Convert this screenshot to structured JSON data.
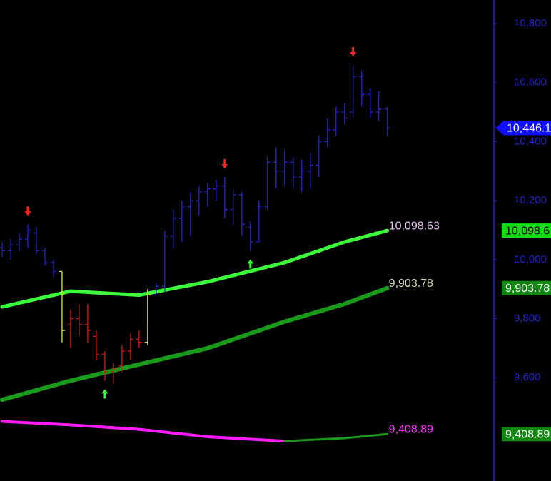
{
  "chart_data": {
    "type": "ohlc",
    "ylim": [
      9250,
      10880
    ],
    "yticks": [
      {
        "value": 10800,
        "label": "10,800"
      },
      {
        "value": 10600,
        "label": "10,600"
      },
      {
        "value": 10400,
        "label": "10,400"
      },
      {
        "value": 10200,
        "label": "10,200"
      },
      {
        "value": 10000,
        "label": "10,000"
      },
      {
        "value": 9800,
        "label": "9,800"
      },
      {
        "value": 9600,
        "label": "9,600"
      }
    ],
    "xlim": [
      -0.25,
      57.2
    ],
    "bars": {
      "open": [
        10040,
        10030,
        10050,
        10070,
        10090,
        10030,
        9990,
        9960,
        9780,
        9800,
        9780,
        9740,
        9680,
        9620,
        9640,
        9690,
        9730,
        9720,
        9880,
        9910,
        10080,
        10140,
        10180,
        10200,
        10230,
        10240,
        10250,
        10170,
        10220,
        10110,
        10060,
        10180,
        10330,
        10300,
        10330,
        10280,
        10300,
        10320,
        10400,
        10440,
        10500,
        10500,
        10620,
        10560,
        10500,
        10510
      ],
      "high": [
        10060,
        10070,
        10090,
        10120,
        10110,
        10040,
        10000,
        9960,
        9830,
        9850,
        9850,
        9760,
        9690,
        9650,
        9710,
        9750,
        9760,
        9900,
        9920,
        10100,
        10170,
        10200,
        10230,
        10250,
        10260,
        10270,
        10280,
        10240,
        10230,
        10130,
        10200,
        10350,
        10380,
        10370,
        10350,
        10340,
        10360,
        10420,
        10480,
        10520,
        10530,
        10660,
        10640,
        10580,
        10570,
        10520
      ],
      "low": [
        10010,
        10000,
        10030,
        10040,
        10020,
        9980,
        9940,
        9720,
        9700,
        9740,
        9720,
        9660,
        9590,
        9580,
        9620,
        9660,
        9700,
        9710,
        9880,
        9890,
        10040,
        10060,
        10080,
        10150,
        10180,
        10200,
        10140,
        10120,
        10080,
        10030,
        10060,
        10170,
        10240,
        10250,
        10240,
        10230,
        10240,
        10280,
        10380,
        10420,
        10460,
        10480,
        10520,
        10480,
        10470,
        10420
      ],
      "close": [
        10030,
        10050,
        10070,
        10100,
        10030,
        9990,
        9960,
        9760,
        9800,
        9780,
        9760,
        9680,
        9620,
        9630,
        9690,
        9730,
        9720,
        9880,
        9910,
        10080,
        10140,
        10180,
        10200,
        10230,
        10240,
        10250,
        10170,
        10220,
        10120,
        10060,
        10180,
        10330,
        10300,
        10330,
        10280,
        10300,
        10320,
        10400,
        10440,
        10500,
        10480,
        10620,
        10560,
        10500,
        10510,
        10446.1
      ],
      "colors": [
        "#2424c8",
        "#2424c8",
        "#2424c8",
        "#2424c8",
        "#2424c8",
        "#2424c8",
        "#2424c8",
        "#e6e640",
        "#d81818",
        "#d81818",
        "#d81818",
        "#d81818",
        "#d81818",
        "#d81818",
        "#d81818",
        "#d81818",
        "#d81818",
        "#e6e640",
        "#2424c8",
        "#2424c8",
        "#2424c8",
        "#2424c8",
        "#2424c8",
        "#2424c8",
        "#2424c8",
        "#2424c8",
        "#2424c8",
        "#2424c8",
        "#2424c8",
        "#2424c8",
        "#2424c8",
        "#2424c8",
        "#2424c8",
        "#2424c8",
        "#2424c8",
        "#2424c8",
        "#2424c8",
        "#2424c8",
        "#2424c8",
        "#2424c8",
        "#2424c8",
        "#2424c8",
        "#2424c8",
        "#2424c8",
        "#2424c8",
        "#2424c8"
      ]
    },
    "series": [
      {
        "color": "#3cff3c",
        "width": 5,
        "x": [
          0,
          8,
          16,
          24,
          33,
          40,
          45
        ],
        "values": [
          9840,
          9893,
          9880,
          9925,
          9990,
          10060,
          10098.63
        ],
        "label": "10,098.63",
        "label_color": "#e6c8f0"
      },
      {
        "color": "#1a9a1a",
        "width": 6,
        "x": [
          0,
          8,
          16,
          24,
          33,
          40,
          45
        ],
        "values": [
          9525,
          9590,
          9645,
          9700,
          9790,
          9850,
          9903.78
        ],
        "label": "9,903.78",
        "label_color": "#d8d8b0"
      },
      {
        "color": "#ff1cff",
        "width": 4,
        "x": [
          0,
          8,
          16,
          24,
          33
        ],
        "values": [
          9452,
          9440,
          9425,
          9400,
          9385
        ]
      },
      {
        "color": "#1a9a1a",
        "width": 3,
        "x": [
          33,
          40,
          45
        ],
        "values": [
          9385,
          9395,
          9408.89
        ],
        "label": "9,408.89",
        "label_color": "#ff30ff"
      }
    ],
    "signals": [
      {
        "x": 3,
        "direction": "down",
        "color": "#ff2020"
      },
      {
        "x": 26,
        "direction": "down",
        "color": "#ff2020"
      },
      {
        "x": 41,
        "direction": "down",
        "color": "#ff2020"
      },
      {
        "x": 12,
        "direction": "up",
        "color": "#30ff30"
      },
      {
        "x": 29,
        "direction": "up",
        "color": "#30ff30"
      }
    ],
    "price_badges": [
      {
        "value": 10446.1,
        "label": "10,446.1",
        "color": "#1010ff",
        "shape": "arrow"
      },
      {
        "value": 10098.6,
        "label": "10,098.6",
        "color": "#10e010",
        "text_color": "#000000",
        "shape": "box"
      },
      {
        "value": 9903.78,
        "label": "9,903.78",
        "color": "#128812",
        "text_color": "#ffffff",
        "shape": "box"
      },
      {
        "value": 9408.89,
        "label": "9,408.89",
        "color": "#128812",
        "text_color": "#ffffff",
        "shape": "box"
      }
    ],
    "axis_color": "#2020c8"
  }
}
